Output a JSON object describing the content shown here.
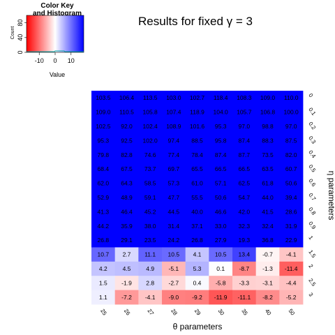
{
  "chart_data": {
    "type": "heatmap",
    "title": "Results for fixed γ = 3",
    "xlabel": "θ parameters",
    "ylabel": "η parameters",
    "x_categories": [
      "25",
      "26",
      "27",
      "28",
      "29",
      "30",
      "35",
      "40",
      "50"
    ],
    "y_categories": [
      "0",
      "0.1",
      "0.2",
      "0.3",
      "0.4",
      "0.5",
      "0.6",
      "0.7",
      "0.8",
      "0.9",
      "1",
      "1.5",
      "2",
      "2.5",
      "3"
    ],
    "values": [
      [
        103.5,
        106.4,
        113.5,
        103.0,
        102.7,
        118.4,
        108.3,
        109.0,
        110.0
      ],
      [
        109.0,
        110.5,
        105.8,
        107.4,
        118.9,
        104.0,
        105.7,
        106.8,
        100.0
      ],
      [
        102.5,
        92.0,
        102.4,
        108.9,
        101.6,
        95.3,
        97.0,
        98.8,
        97.0
      ],
      [
        95.3,
        92.5,
        102.0,
        97.4,
        88.5,
        95.8,
        87.4,
        88.3,
        87.5
      ],
      [
        79.8,
        82.8,
        74.6,
        77.4,
        78.4,
        87.4,
        87.7,
        73.5,
        82.0
      ],
      [
        68.4,
        67.5,
        73.7,
        69.7,
        65.5,
        66.5,
        66.5,
        63.5,
        60.7
      ],
      [
        62.0,
        64.3,
        58.5,
        57.3,
        61.0,
        57.1,
        62.5,
        61.8,
        50.6
      ],
      [
        52.9,
        48.9,
        59.1,
        47.7,
        55.5,
        50.6,
        54.7,
        44.0,
        39.4
      ],
      [
        41.3,
        46.4,
        45.2,
        44.5,
        40.0,
        46.6,
        42.0,
        41.5,
        28.6
      ],
      [
        44.2,
        35.9,
        38.0,
        31.4,
        37.1,
        33.0,
        32.3,
        32.4,
        31.9
      ],
      [
        26.8,
        29.1,
        23.5,
        24.2,
        26.8,
        27.9,
        19.3,
        36.8,
        22.9
      ],
      [
        10.7,
        2.7,
        11.1,
        10.5,
        4.1,
        10.5,
        13.4,
        -0.7,
        -4.1
      ],
      [
        4.2,
        4.5,
        4.9,
        -5.1,
        5.3,
        0.1,
        -8.7,
        -1.3,
        -11.4
      ],
      [
        1.5,
        -1.9,
        2.8,
        -2.7,
        0.4,
        -5.8,
        -3.3,
        -3.1,
        -4.4
      ],
      [
        1.1,
        -7.2,
        -4.1,
        -9.0,
        -9.2,
        -11.9,
        -11.1,
        -8.2,
        -5.2
      ]
    ],
    "color_scale": {
      "low_color": "#ff0000",
      "mid_color": "#ffffff",
      "high_color": "#0000ff",
      "range": [
        -18,
        18
      ]
    },
    "color_key": {
      "title_line1": "Color Key",
      "title_line2": "and Histogram",
      "xlabel": "Value",
      "ylabel": "Count",
      "x_ticks": [
        "-10",
        "0",
        "10"
      ],
      "y_ticks": [
        "0",
        "40",
        "80"
      ]
    }
  }
}
